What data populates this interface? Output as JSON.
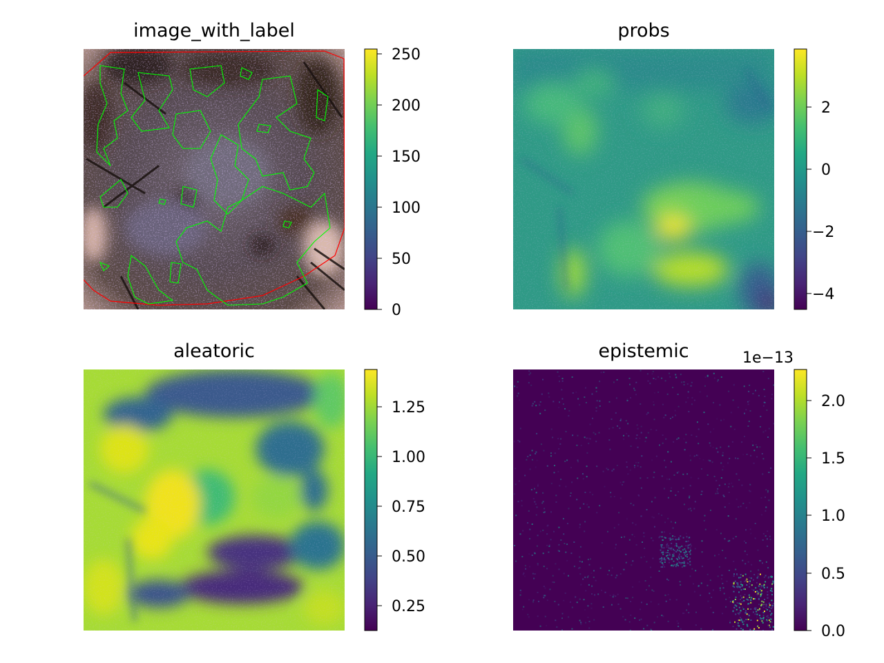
{
  "chart_data": [
    {
      "type": "heatmap",
      "title": "image_with_label",
      "colormap": "viridis",
      "colorbar": {
        "range": [
          0,
          255
        ],
        "ticks": [
          0,
          50,
          100,
          150,
          200,
          250
        ],
        "tick_labels": [
          "0",
          "50",
          "100",
          "150",
          "200",
          "250"
        ]
      },
      "overlays": [
        {
          "kind": "contour",
          "color": "#ff0000"
        },
        {
          "kind": "contour",
          "color": "#00ff00"
        }
      ]
    },
    {
      "type": "heatmap",
      "title": "probs",
      "colormap": "viridis",
      "colorbar": {
        "range": [
          -4.5,
          3.8
        ],
        "ticks": [
          2,
          0,
          -2,
          -4
        ],
        "tick_labels": [
          "2",
          "0",
          "−2",
          "−4"
        ]
      }
    },
    {
      "type": "heatmap",
      "title": "aleatoric",
      "colormap": "viridis",
      "colorbar": {
        "range": [
          0.12,
          1.43
        ],
        "ticks": [
          1.25,
          1.0,
          0.75,
          0.5,
          0.25
        ],
        "tick_labels": [
          "1.25",
          "1.00",
          "0.75",
          "0.50",
          "0.25"
        ]
      }
    },
    {
      "type": "heatmap",
      "title": "epistemic",
      "colormap": "viridis",
      "colorbar": {
        "range": [
          0,
          2.27
        ],
        "ticks": [
          2.0,
          1.5,
          1.0,
          0.5,
          0.0
        ],
        "tick_labels": [
          "2.0",
          "1.5",
          "1.0",
          "0.5",
          "0.0"
        ],
        "offset_label": "1e−13"
      }
    }
  ],
  "colors": {
    "contour_red": "#ff0000",
    "contour_green": "#00ff00"
  }
}
